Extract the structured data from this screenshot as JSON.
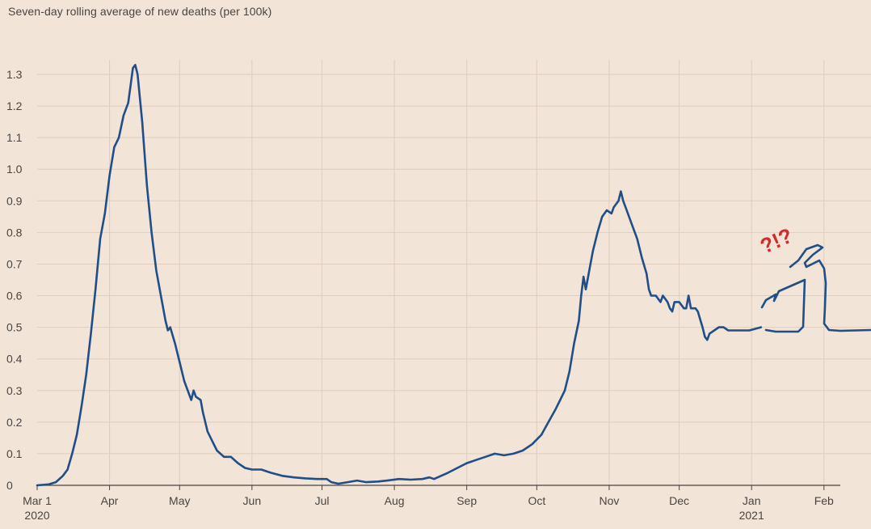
{
  "chart_data": {
    "type": "line",
    "title": "Seven-day rolling average of new deaths (per 100k)",
    "xlabel": "",
    "ylabel": "",
    "ylim": [
      0,
      1.3
    ],
    "y_ticks": [
      "0",
      "0.1",
      "0.2",
      "0.3",
      "0.4",
      "0.5",
      "0.6",
      "0.7",
      "0.8",
      "0.9",
      "1.0",
      "1.1",
      "1.2",
      "1.3"
    ],
    "x_ticks": [
      {
        "label": "Mar 1",
        "sub": "2020",
        "day": 0
      },
      {
        "label": "Apr",
        "sub": "",
        "day": 31
      },
      {
        "label": "May",
        "sub": "",
        "day": 61
      },
      {
        "label": "Jun",
        "sub": "",
        "day": 92
      },
      {
        "label": "Jul",
        "sub": "",
        "day": 122
      },
      {
        "label": "Aug",
        "sub": "",
        "day": 153
      },
      {
        "label": "Sep",
        "sub": "",
        "day": 184
      },
      {
        "label": "Oct",
        "sub": "",
        "day": 214
      },
      {
        "label": "Nov",
        "sub": "",
        "day": 245
      },
      {
        "label": "Dec",
        "sub": "",
        "day": 275
      },
      {
        "label": "Jan",
        "sub": "2021",
        "day": 306
      },
      {
        "label": "Feb",
        "sub": "",
        "day": 337
      }
    ],
    "grid": true,
    "line_color": "#1f4e89",
    "annotation": "?!?",
    "series": [
      {
        "name": "",
        "points": [
          [
            0,
            0
          ],
          [
            5,
            0.003
          ],
          [
            8,
            0.01
          ],
          [
            11,
            0.03
          ],
          [
            13,
            0.05
          ],
          [
            15,
            0.1
          ],
          [
            17,
            0.16
          ],
          [
            19,
            0.25
          ],
          [
            21,
            0.35
          ],
          [
            23,
            0.48
          ],
          [
            25,
            0.62
          ],
          [
            27,
            0.78
          ],
          [
            29,
            0.86
          ],
          [
            31,
            0.98
          ],
          [
            33,
            1.07
          ],
          [
            35,
            1.1
          ],
          [
            37,
            1.17
          ],
          [
            39,
            1.21
          ],
          [
            41,
            1.32
          ],
          [
            42,
            1.33
          ],
          [
            43,
            1.3
          ],
          [
            45,
            1.15
          ],
          [
            47,
            0.95
          ],
          [
            49,
            0.8
          ],
          [
            51,
            0.68
          ],
          [
            53,
            0.6
          ],
          [
            55,
            0.52
          ],
          [
            56,
            0.49
          ],
          [
            57,
            0.5
          ],
          [
            59,
            0.45
          ],
          [
            61,
            0.39
          ],
          [
            63,
            0.33
          ],
          [
            65,
            0.29
          ],
          [
            66,
            0.27
          ],
          [
            67,
            0.3
          ],
          [
            68,
            0.28
          ],
          [
            70,
            0.27
          ],
          [
            71,
            0.23
          ],
          [
            73,
            0.17
          ],
          [
            75,
            0.14
          ],
          [
            77,
            0.11
          ],
          [
            80,
            0.09
          ],
          [
            83,
            0.09
          ],
          [
            86,
            0.07
          ],
          [
            89,
            0.055
          ],
          [
            92,
            0.05
          ],
          [
            96,
            0.05
          ],
          [
            100,
            0.04
          ],
          [
            105,
            0.03
          ],
          [
            110,
            0.025
          ],
          [
            115,
            0.022
          ],
          [
            120,
            0.02
          ],
          [
            124,
            0.02
          ],
          [
            126,
            0.01
          ],
          [
            129,
            0.005
          ],
          [
            133,
            0.01
          ],
          [
            137,
            0.015
          ],
          [
            141,
            0.01
          ],
          [
            146,
            0.012
          ],
          [
            150,
            0.015
          ],
          [
            155,
            0.02
          ],
          [
            160,
            0.018
          ],
          [
            165,
            0.02
          ],
          [
            168,
            0.025
          ],
          [
            170,
            0.02
          ],
          [
            173,
            0.03
          ],
          [
            176,
            0.04
          ],
          [
            180,
            0.055
          ],
          [
            184,
            0.07
          ],
          [
            188,
            0.08
          ],
          [
            192,
            0.09
          ],
          [
            196,
            0.1
          ],
          [
            200,
            0.095
          ],
          [
            204,
            0.1
          ],
          [
            208,
            0.11
          ],
          [
            212,
            0.13
          ],
          [
            216,
            0.16
          ],
          [
            219,
            0.2
          ],
          [
            222,
            0.24
          ],
          [
            224,
            0.27
          ],
          [
            226,
            0.3
          ],
          [
            228,
            0.36
          ],
          [
            230,
            0.45
          ],
          [
            232,
            0.52
          ],
          [
            233,
            0.6
          ],
          [
            234,
            0.66
          ],
          [
            235,
            0.62
          ],
          [
            236,
            0.66
          ],
          [
            238,
            0.74
          ],
          [
            240,
            0.8
          ],
          [
            242,
            0.85
          ],
          [
            244,
            0.87
          ],
          [
            246,
            0.86
          ],
          [
            247,
            0.88
          ],
          [
            249,
            0.9
          ],
          [
            250,
            0.93
          ],
          [
            251,
            0.9
          ],
          [
            253,
            0.86
          ],
          [
            255,
            0.82
          ],
          [
            257,
            0.78
          ],
          [
            259,
            0.72
          ],
          [
            261,
            0.67
          ],
          [
            262,
            0.62
          ],
          [
            263,
            0.6
          ],
          [
            265,
            0.6
          ],
          [
            267,
            0.58
          ],
          [
            268,
            0.6
          ],
          [
            270,
            0.58
          ],
          [
            271,
            0.56
          ],
          [
            272,
            0.55
          ],
          [
            273,
            0.58
          ],
          [
            275,
            0.58
          ],
          [
            277,
            0.56
          ],
          [
            278,
            0.56
          ],
          [
            279,
            0.6
          ],
          [
            280,
            0.56
          ],
          [
            282,
            0.56
          ],
          [
            283,
            0.55
          ],
          [
            285,
            0.5
          ],
          [
            286,
            0.47
          ],
          [
            287,
            0.46
          ],
          [
            288,
            0.48
          ],
          [
            290,
            0.49
          ],
          [
            292,
            0.5
          ],
          [
            294,
            0.5
          ],
          [
            296,
            0.49
          ],
          [
            300,
            0.49
          ],
          [
            305,
            0.49
          ],
          [
            310,
            0.5
          ]
        ]
      }
    ]
  }
}
